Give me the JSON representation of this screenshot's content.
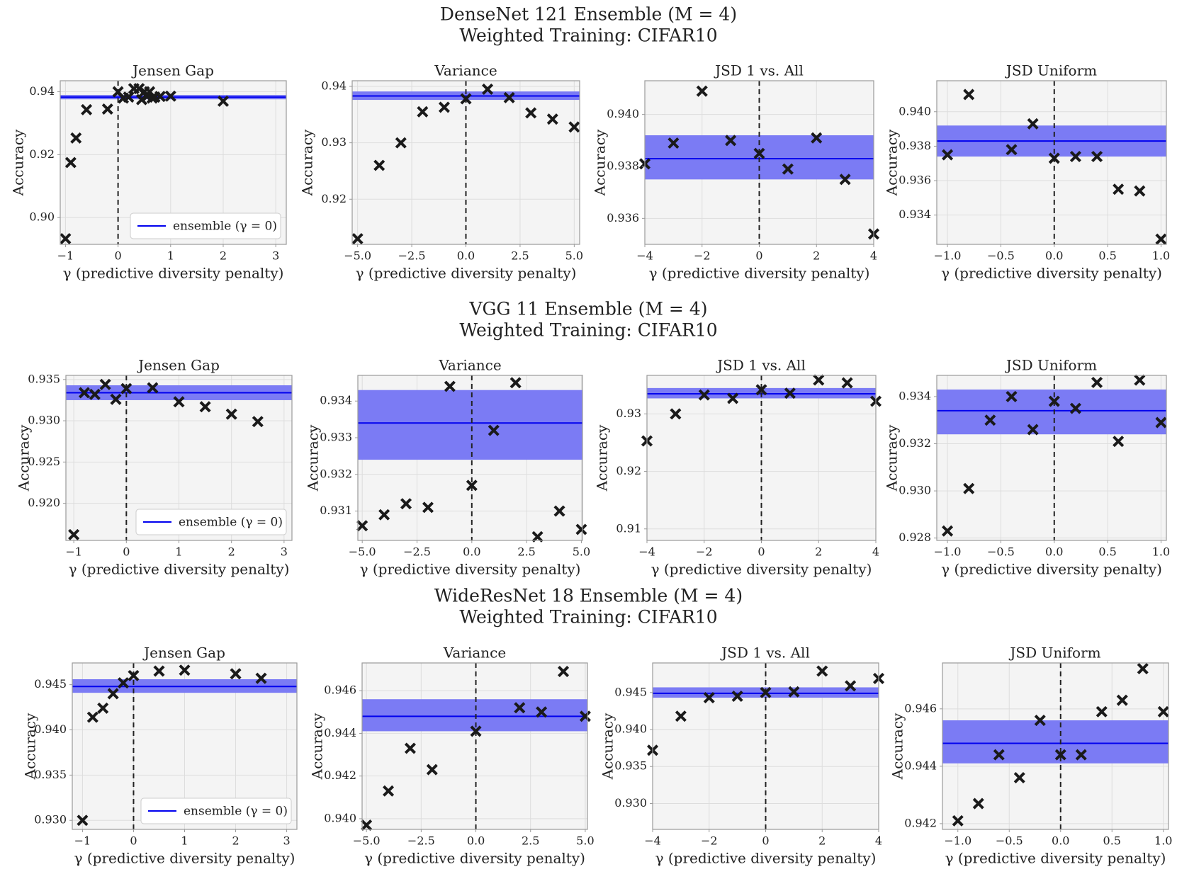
{
  "colors": {
    "panel_bg": "#f4f4f4",
    "grid": "#dddddd",
    "frame": "#999999",
    "band": "#7b7bf4",
    "ensemble_line": "#0000ee",
    "marker": "#1a1a1a",
    "zero_line": "#222222"
  },
  "legend": {
    "label": "ensemble (γ = 0)"
  },
  "chart_data": [
    {
      "model_title": "DenseNet 121 Ensemble (M = 4)",
      "training_title": "Weighted Training: CIFAR10",
      "panels": [
        {
          "type": "scatter",
          "title": "Jensen Gap",
          "xlabel": "γ (predictive diversity penalty)",
          "ylabel": "Accuracy",
          "xlim": [
            -1.1,
            3.2
          ],
          "ylim": [
            0.8915,
            0.9435
          ],
          "xticks": [
            -1,
            0,
            1,
            2,
            3
          ],
          "xtick_labels": [
            "−1",
            "0",
            "1",
            "2",
            "3"
          ],
          "yticks": [
            0.9,
            0.92,
            0.94
          ],
          "ytick_labels": [
            "0.90",
            "0.92",
            "0.94"
          ],
          "ensemble": 0.9383,
          "band": [
            0.9376,
            0.939
          ],
          "legend": true,
          "x": [
            -1.0,
            -0.9,
            -0.8,
            -0.6,
            -0.2,
            0.0,
            0.1,
            0.2,
            0.3,
            0.4,
            0.45,
            0.5,
            0.55,
            0.6,
            0.65,
            0.7,
            0.8,
            1.0,
            2.0
          ],
          "y": [
            0.8933,
            0.9175,
            0.9253,
            0.9343,
            0.9345,
            0.94,
            0.938,
            0.9383,
            0.941,
            0.941,
            0.9375,
            0.94,
            0.9385,
            0.94,
            0.938,
            0.9383,
            0.9385,
            0.9386,
            0.937
          ]
        },
        {
          "type": "scatter",
          "title": "Variance",
          "xlabel": "γ (predictive diversity penalty)",
          "ylabel": "Accuracy",
          "xlim": [
            -5.25,
            5.25
          ],
          "ylim": [
            0.912,
            0.941
          ],
          "xticks": [
            -5,
            -2.5,
            0,
            2.5,
            5
          ],
          "xtick_labels": [
            "−5.0",
            "−2.5",
            "0.0",
            "2.5",
            "5.0"
          ],
          "yticks": [
            0.92,
            0.93,
            0.94
          ],
          "ytick_labels": [
            "0.92",
            "0.93",
            "0.94"
          ],
          "ensemble": 0.9383,
          "band": [
            0.9376,
            0.9391
          ],
          "legend": false,
          "x": [
            -5,
            -4,
            -3,
            -2,
            -1,
            0,
            1,
            2,
            3,
            4,
            5
          ],
          "y": [
            0.913,
            0.926,
            0.93,
            0.9355,
            0.9363,
            0.9378,
            0.9395,
            0.938,
            0.9353,
            0.9342,
            0.9328
          ]
        },
        {
          "type": "scatter",
          "title": "JSD 1 vs. All",
          "xlabel": "γ (predictive diversity penalty)",
          "ylabel": "Accuracy",
          "xlim": [
            -4,
            4
          ],
          "ylim": [
            0.935,
            0.9413
          ],
          "xticks": [
            -4,
            -2,
            0,
            2,
            4
          ],
          "xtick_labels": [
            "−4",
            "−2",
            "0",
            "2",
            "4"
          ],
          "yticks": [
            0.936,
            0.938,
            0.94
          ],
          "ytick_labels": [
            "0.936",
            "0.938",
            "0.940"
          ],
          "ensemble": 0.9383,
          "band": [
            0.9375,
            0.9392
          ],
          "legend": false,
          "x": [
            -4,
            -3,
            -2,
            -1,
            0,
            1,
            2,
            3,
            4
          ],
          "y": [
            0.9381,
            0.9389,
            0.9409,
            0.939,
            0.9385,
            0.9379,
            0.9391,
            0.9375,
            0.9354
          ]
        },
        {
          "type": "scatter",
          "title": "JSD Uniform",
          "xlabel": "γ (predictive diversity penalty)",
          "ylabel": "Accuracy",
          "xlim": [
            -1.1,
            1.05
          ],
          "ylim": [
            0.9323,
            0.9418
          ],
          "xticks": [
            -1,
            -0.5,
            0,
            0.5,
            1
          ],
          "xtick_labels": [
            "−1.0",
            "−0.5",
            "0.0",
            "0.5",
            "1.0"
          ],
          "yticks": [
            0.934,
            0.936,
            0.938,
            0.94
          ],
          "ytick_labels": [
            "0.934",
            "0.936",
            "0.938",
            "0.940"
          ],
          "ensemble": 0.9383,
          "band": [
            0.9374,
            0.9392
          ],
          "legend": false,
          "x": [
            -1.0,
            -0.8,
            -0.4,
            -0.2,
            0.0,
            0.2,
            0.4,
            0.6,
            0.8,
            1.0
          ],
          "y": [
            0.9375,
            0.941,
            0.9378,
            0.9393,
            0.9373,
            0.9374,
            0.9374,
            0.9355,
            0.9354,
            0.9326
          ]
        }
      ]
    },
    {
      "model_title": "VGG 11 Ensemble (M = 4)",
      "training_title": "Weighted Training: CIFAR10",
      "panels": [
        {
          "type": "scatter",
          "title": "Jensen Gap",
          "xlabel": "γ (predictive diversity penalty)",
          "ylabel": "Accuracy",
          "xlim": [
            -1.15,
            3.15
          ],
          "ylim": [
            0.9155,
            0.9355
          ],
          "xticks": [
            -1,
            0,
            1,
            2,
            3
          ],
          "xtick_labels": [
            "−1",
            "0",
            "1",
            "2",
            "3"
          ],
          "yticks": [
            0.92,
            0.925,
            0.93,
            0.935
          ],
          "ytick_labels": [
            "0.920",
            "0.925",
            "0.930",
            "0.935"
          ],
          "ensemble": 0.9334,
          "band": [
            0.9325,
            0.9343
          ],
          "legend": true,
          "x": [
            -1.0,
            -0.8,
            -0.6,
            -0.4,
            -0.2,
            0.0,
            0.5,
            1.0,
            1.5,
            2.0,
            2.5
          ],
          "y": [
            0.9162,
            0.9334,
            0.9332,
            0.9344,
            0.9326,
            0.9339,
            0.934,
            0.9323,
            0.9317,
            0.9308,
            0.9299
          ]
        },
        {
          "type": "scatter",
          "title": "Variance",
          "xlabel": "γ (predictive diversity penalty)",
          "ylabel": "Accuracy",
          "xlim": [
            -5.2,
            5.05
          ],
          "ylim": [
            0.9302,
            0.9347
          ],
          "xticks": [
            -5,
            -2.5,
            0,
            2.5,
            5
          ],
          "xtick_labels": [
            "−5.0",
            "−2.5",
            "0.0",
            "2.5",
            "5.0"
          ],
          "yticks": [
            0.931,
            0.932,
            0.933,
            0.934
          ],
          "ytick_labels": [
            "0.931",
            "0.932",
            "0.933",
            "0.934"
          ],
          "ensemble": 0.9334,
          "band": [
            0.9324,
            0.9343
          ],
          "legend": false,
          "x": [
            -5,
            -4,
            -3,
            -2,
            -1,
            0,
            1,
            2,
            3,
            4,
            5
          ],
          "y": [
            0.9306,
            0.9309,
            0.9312,
            0.9311,
            0.9344,
            0.9317,
            0.9332,
            0.9345,
            0.9303,
            0.931,
            0.9305
          ]
        },
        {
          "type": "scatter",
          "title": "JSD 1 vs. All",
          "xlabel": "γ (predictive diversity penalty)",
          "ylabel": "Accuracy",
          "xlim": [
            -4,
            4
          ],
          "ylim": [
            0.908,
            0.9367
          ],
          "xticks": [
            -4,
            -2,
            0,
            2,
            4
          ],
          "xtick_labels": [
            "−4",
            "−2",
            "0",
            "2",
            "4"
          ],
          "yticks": [
            0.91,
            0.92,
            0.93
          ],
          "ytick_labels": [
            "0.91",
            "0.92",
            "0.93"
          ],
          "ensemble": 0.9335,
          "band": [
            0.9327,
            0.9345
          ],
          "legend": false,
          "x": [
            -4,
            -3,
            -2,
            -1,
            0,
            1,
            2,
            3,
            4
          ],
          "y": [
            0.9253,
            0.93,
            0.9333,
            0.9327,
            0.9342,
            0.9336,
            0.9359,
            0.9354,
            0.9322
          ]
        },
        {
          "type": "scatter",
          "title": "JSD Uniform",
          "xlabel": "γ (predictive diversity penalty)",
          "ylabel": "Accuracy",
          "xlim": [
            -1.1,
            1.05
          ],
          "ylim": [
            0.9279,
            0.9349
          ],
          "xticks": [
            -1,
            -0.5,
            0,
            0.5,
            1
          ],
          "xtick_labels": [
            "−1.0",
            "−0.5",
            "0.0",
            "0.5",
            "1.0"
          ],
          "yticks": [
            0.928,
            0.93,
            0.932,
            0.934
          ],
          "ytick_labels": [
            "0.928",
            "0.930",
            "0.932",
            "0.934"
          ],
          "ensemble": 0.9334,
          "band": [
            0.9324,
            0.9343
          ],
          "legend": false,
          "x": [
            -1.0,
            -0.8,
            -0.6,
            -0.4,
            -0.2,
            0.0,
            0.2,
            0.4,
            0.6,
            0.8,
            1.0
          ],
          "y": [
            0.9283,
            0.9301,
            0.933,
            0.934,
            0.9326,
            0.9338,
            0.9335,
            0.9346,
            0.9321,
            0.9347,
            0.9329
          ]
        }
      ]
    },
    {
      "model_title": "WideResNet 18 Ensemble (M = 4)",
      "training_title": "Weighted Training: CIFAR10",
      "panels": [
        {
          "type": "scatter",
          "title": "Jensen Gap",
          "xlabel": "γ (predictive diversity penalty)",
          "ylabel": "Accuracy",
          "xlim": [
            -1.2,
            3.2
          ],
          "ylim": [
            0.929,
            0.9474
          ],
          "xticks": [
            -1,
            0,
            1,
            2,
            3
          ],
          "xtick_labels": [
            "−1",
            "0",
            "1",
            "2",
            "3"
          ],
          "yticks": [
            0.93,
            0.935,
            0.94,
            0.945
          ],
          "ytick_labels": [
            "0.930",
            "0.935",
            "0.940",
            "0.945"
          ],
          "ensemble": 0.9448,
          "band": [
            0.9441,
            0.9456
          ],
          "legend": true,
          "x": [
            -1.0,
            -0.8,
            -0.6,
            -0.4,
            -0.2,
            0.0,
            0.5,
            1.0,
            2.0,
            2.5
          ],
          "y": [
            0.93,
            0.9414,
            0.9424,
            0.944,
            0.9452,
            0.946,
            0.9465,
            0.9466,
            0.9462,
            0.9457
          ]
        },
        {
          "type": "scatter",
          "title": "Variance",
          "xlabel": "γ (predictive diversity penalty)",
          "ylabel": "Accuracy",
          "xlim": [
            -5.2,
            5.1
          ],
          "ylim": [
            0.9395,
            0.9473
          ],
          "xticks": [
            -5,
            -2.5,
            0,
            2.5,
            5
          ],
          "xtick_labels": [
            "−5.0",
            "−2.5",
            "0.0",
            "2.5",
            "5.0"
          ],
          "yticks": [
            0.94,
            0.942,
            0.944,
            0.946
          ],
          "ytick_labels": [
            "0.940",
            "0.942",
            "0.944",
            "0.946"
          ],
          "ensemble": 0.9448,
          "band": [
            0.9441,
            0.9456
          ],
          "legend": false,
          "x": [
            -5,
            -4,
            -3,
            -2,
            0,
            2,
            3,
            4,
            5
          ],
          "y": [
            0.9397,
            0.9413,
            0.9433,
            0.9423,
            0.9441,
            0.9452,
            0.945,
            0.9469,
            0.9448
          ]
        },
        {
          "type": "scatter",
          "title": "JSD 1 vs. All",
          "xlabel": "γ (predictive diversity penalty)",
          "ylabel": "Accuracy",
          "xlim": [
            -4,
            4
          ],
          "ylim": [
            0.9265,
            0.949
          ],
          "xticks": [
            -4,
            -2,
            0,
            2,
            4
          ],
          "xtick_labels": [
            "−4",
            "−2",
            "0",
            "2",
            "4"
          ],
          "yticks": [
            0.93,
            0.935,
            0.94,
            0.945
          ],
          "ytick_labels": [
            "0.930",
            "0.935",
            "0.940",
            "0.945"
          ],
          "ensemble": 0.9449,
          "band": [
            0.9443,
            0.9457
          ],
          "legend": false,
          "x": [
            -4,
            -3,
            -2,
            -1,
            0,
            1,
            2,
            3,
            4
          ],
          "y": [
            0.9372,
            0.9418,
            0.9443,
            0.9445,
            0.945,
            0.9451,
            0.9479,
            0.9459,
            0.9469
          ]
        },
        {
          "type": "scatter",
          "title": "JSD Uniform",
          "xlabel": "γ (predictive diversity penalty)",
          "ylabel": "Accuracy",
          "xlim": [
            -1.15,
            1.05
          ],
          "ylim": [
            0.9418,
            0.9476
          ],
          "xticks": [
            -1,
            -0.5,
            0,
            0.5,
            1
          ],
          "xtick_labels": [
            "−1.0",
            "−0.5",
            "0.0",
            "0.5",
            "1.0"
          ],
          "yticks": [
            0.942,
            0.944,
            0.946
          ],
          "ytick_labels": [
            "0.942",
            "0.944",
            "0.946"
          ],
          "ensemble": 0.9448,
          "band": [
            0.9441,
            0.9456
          ],
          "legend": false,
          "x": [
            -1.0,
            -0.8,
            -0.6,
            -0.4,
            -0.2,
            0.0,
            0.2,
            0.4,
            0.6,
            0.8,
            1.0
          ],
          "y": [
            0.9421,
            0.9427,
            0.9444,
            0.9436,
            0.9456,
            0.9444,
            0.9444,
            0.9459,
            0.9463,
            0.9474,
            0.9459
          ]
        }
      ]
    }
  ]
}
